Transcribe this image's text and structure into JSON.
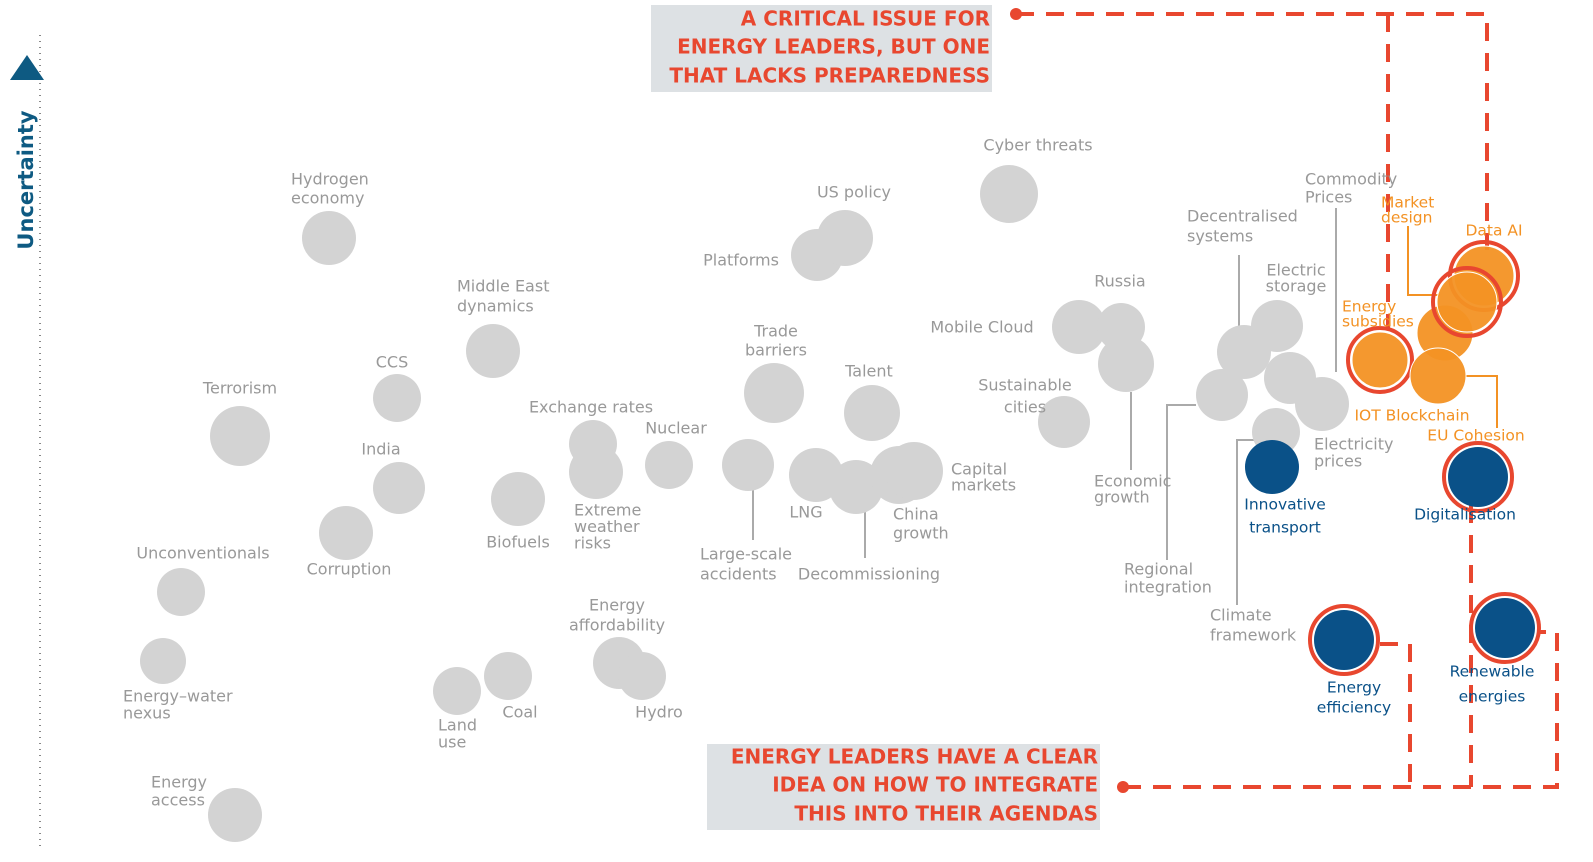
{
  "axis": {
    "label": "Uncertainty"
  },
  "callouts": [
    {
      "lines": [
        "A CRITICAL ISSUE FOR",
        "ENERGY LEADERS, BUT ONE",
        "THAT LACKS PREPAREDNESS"
      ]
    },
    {
      "lines": [
        "ENERGY LEADERS HAVE A CLEAR",
        "IDEA ON HOW TO INTEGRATE",
        "THIS INTO THEIR AGENDAS"
      ]
    }
  ],
  "nodes": [
    {
      "lines": [
        "Hydrogen",
        "economy"
      ]
    },
    {
      "lines": [
        "Middle East",
        "dynamics"
      ]
    },
    {
      "lines": [
        "CCS"
      ]
    },
    {
      "lines": [
        "Terrorism"
      ]
    },
    {
      "lines": [
        "India"
      ]
    },
    {
      "lines": [
        "Corruption"
      ]
    },
    {
      "lines": [
        "Unconventionals"
      ]
    },
    {
      "lines": [
        "Energy–water",
        "nexus"
      ]
    },
    {
      "lines": [
        "Energy",
        "access"
      ]
    },
    {
      "lines": [
        "Biofuels"
      ]
    },
    {
      "lines": [
        "Exchange rates"
      ]
    },
    {
      "lines": [
        "Extreme",
        "weather",
        "risks"
      ]
    },
    {
      "lines": [
        "Nuclear"
      ]
    },
    {
      "lines": [
        "Energy",
        "affordability"
      ]
    },
    {
      "lines": [
        "Hydro"
      ]
    },
    {
      "lines": [
        "Land",
        "use"
      ]
    },
    {
      "lines": [
        "Coal"
      ]
    },
    {
      "lines": [
        "Trade",
        "barriers"
      ]
    },
    {
      "lines": [
        "Large-scale",
        "accidents"
      ]
    },
    {
      "lines": [
        "Talent"
      ]
    },
    {
      "lines": [
        "LNG"
      ]
    },
    {
      "lines": [
        "Decommissioning"
      ]
    },
    {
      "lines": [
        "China",
        "growth"
      ]
    },
    {
      "lines": [
        "Capital",
        "markets"
      ]
    },
    {
      "lines": [
        "Platforms"
      ]
    },
    {
      "lines": [
        "US policy"
      ]
    },
    {
      "lines": [
        "Cyber threats"
      ]
    },
    {
      "lines": [
        "Mobile Cloud"
      ]
    },
    {
      "lines": [
        "Russia"
      ]
    },
    {
      "lines": [
        "Sustainable",
        "cities"
      ]
    },
    {
      "lines": [
        "Economic",
        "growth"
      ]
    },
    {
      "lines": [
        "Regional",
        "integration"
      ]
    },
    {
      "lines": [
        "Decentralised",
        "systems"
      ]
    },
    {
      "lines": [
        "Electric",
        "storage"
      ]
    },
    {
      "lines": [
        "Commodity",
        "Prices"
      ]
    },
    {
      "lines": [
        "Electricity",
        "prices"
      ]
    },
    {
      "lines": [
        "Climate",
        "framework"
      ]
    },
    {
      "lines": [
        "Market",
        "design"
      ]
    },
    {
      "lines": [
        "Data AI"
      ]
    },
    {
      "lines": [
        "Energy",
        "subsidies"
      ]
    },
    {
      "lines": [
        "IOT Blockchain"
      ]
    },
    {
      "lines": [
        "EU Cohesion"
      ]
    },
    {
      "lines": [
        "Innovative",
        "transport"
      ]
    },
    {
      "lines": [
        "Digitalisation"
      ]
    },
    {
      "lines": [
        "Energy",
        "efficiency"
      ]
    },
    {
      "lines": [
        "Renewable",
        "energies"
      ]
    }
  ]
}
